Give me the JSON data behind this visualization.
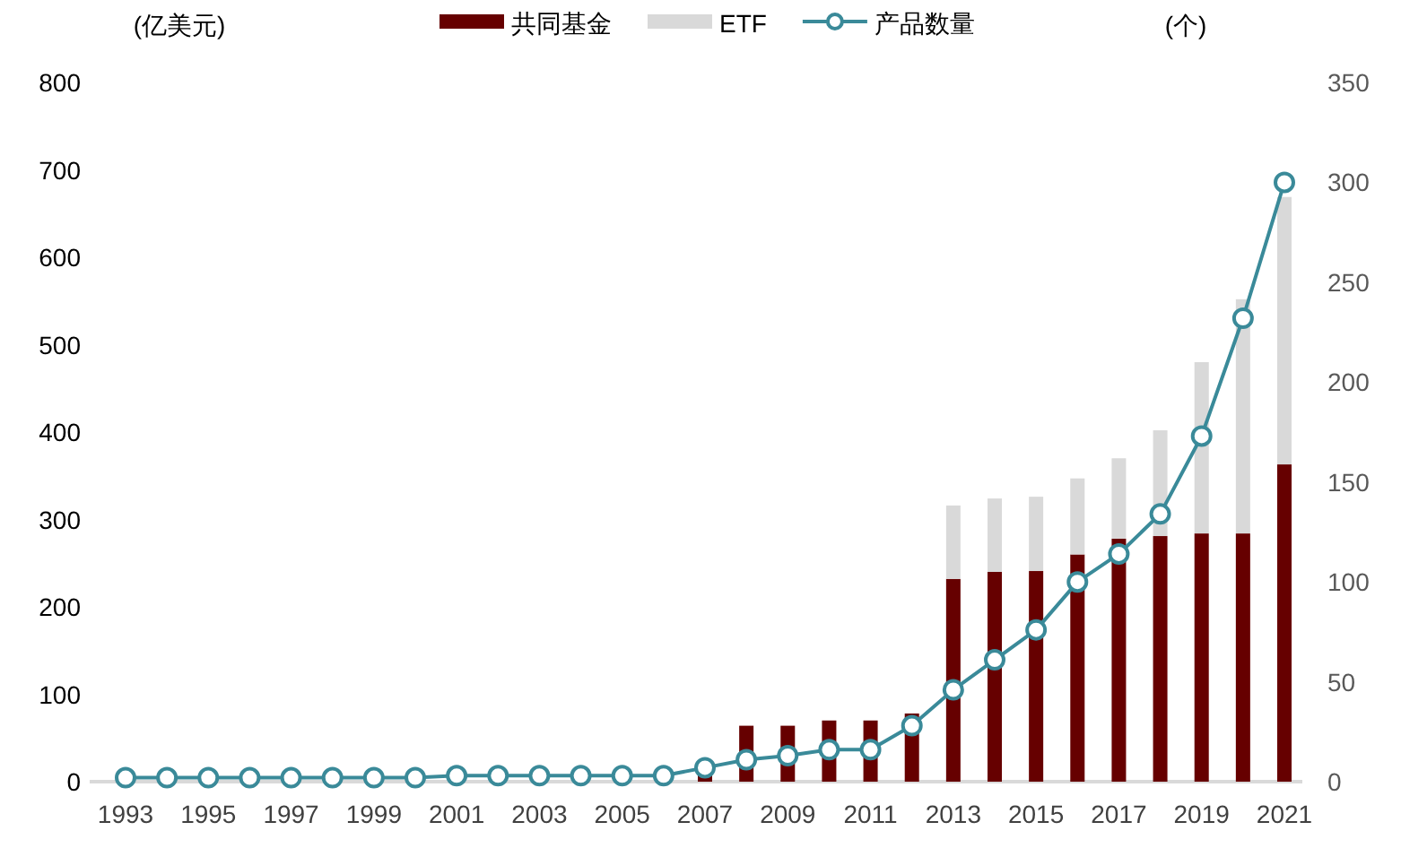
{
  "chart_data": {
    "type": "bar",
    "stacked": true,
    "legend": "top",
    "grid": false,
    "ylabel": "(亿美元)",
    "y2label": "(个)",
    "categories": [
      "1993",
      null,
      "1995",
      null,
      "1997",
      null,
      "1999",
      null,
      "2001",
      null,
      "2003",
      null,
      "2005",
      null,
      "2007",
      null,
      "2009",
      null,
      "2011",
      null,
      "2013",
      null,
      "2015",
      null,
      "2017",
      null,
      "2019",
      null,
      "2021"
    ],
    "ylim": [
      0,
      800
    ],
    "yticks": [
      0,
      100,
      200,
      300,
      400,
      500,
      600,
      700,
      800
    ],
    "y2lim": [
      0,
      350
    ],
    "y2ticks": [
      0,
      50,
      100,
      150,
      200,
      250,
      300,
      350
    ],
    "series": [
      {
        "name": "共同基金",
        "color": "#660000",
        "values": [
          0,
          0,
          0,
          0,
          0,
          0,
          0,
          0,
          0,
          0,
          0,
          0,
          0,
          0,
          8,
          64,
          64,
          70,
          70,
          78,
          232,
          240,
          241,
          260,
          278,
          281,
          284,
          284,
          363
        ]
      },
      {
        "name": "ETF",
        "color": "#d9d9d9",
        "values": [
          0,
          0,
          0,
          0,
          0,
          0,
          0,
          0,
          0,
          0,
          0,
          0,
          0,
          0,
          0,
          0,
          0,
          0,
          0,
          0,
          84,
          84,
          85,
          87,
          92,
          121,
          196,
          268,
          306
        ]
      },
      {
        "name": "产品数量",
        "type": "line",
        "axis": "y2",
        "marker": "circle",
        "color": "#3a8a99",
        "values": [
          2,
          2,
          2,
          2,
          2,
          2,
          2,
          2,
          3,
          3,
          3,
          3,
          3,
          3,
          7,
          11,
          13,
          16,
          16,
          28,
          46,
          61,
          76,
          100,
          114,
          134,
          173,
          232,
          300
        ]
      }
    ]
  }
}
